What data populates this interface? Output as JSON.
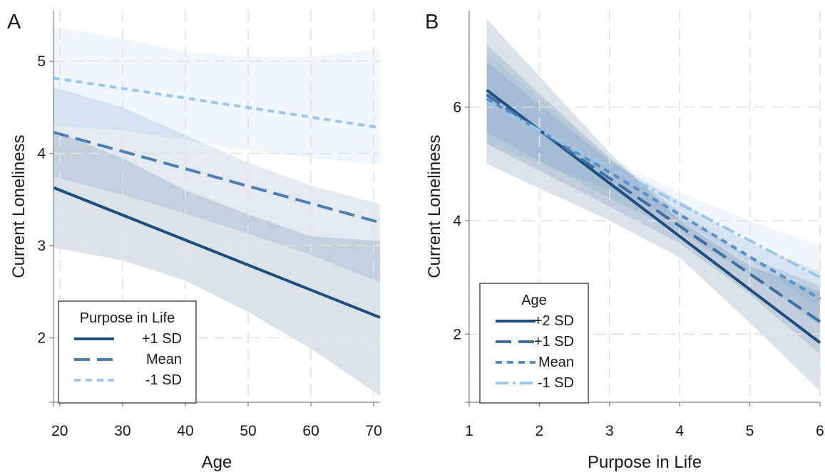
{
  "chart_data": [
    {
      "panel_label": "A",
      "type": "line",
      "xlabel": "Age",
      "ylabel": "Current Loneliness",
      "xlim": [
        19,
        71
      ],
      "ylim": [
        1.3,
        5.55
      ],
      "xticks": [
        20,
        30,
        40,
        50,
        60,
        70
      ],
      "yticks": [
        2,
        3,
        4,
        5
      ],
      "grid": true,
      "legend": {
        "title": "Purpose in Life",
        "placement": "bottom-left",
        "entries": [
          "+1 SD",
          "Mean",
          "-1 SD"
        ]
      },
      "series": [
        {
          "name": "+1 SD",
          "color": "#1f4e7e",
          "dash": "solid",
          "x": [
            19,
            71
          ],
          "y": [
            3.63,
            2.22
          ],
          "ci_lower": [
            [
              19,
              2.98
            ],
            [
              30,
              2.84
            ],
            [
              40,
              2.62
            ],
            [
              50,
              2.28
            ],
            [
              60,
              1.88
            ],
            [
              71,
              1.37
            ]
          ],
          "ci_upper": [
            [
              19,
              4.25
            ],
            [
              30,
              3.95
            ],
            [
              40,
              3.6
            ],
            [
              50,
              3.34
            ],
            [
              60,
              3.1
            ],
            [
              71,
              3.05
            ]
          ]
        },
        {
          "name": "Mean",
          "color": "#4f7fb0",
          "dash": "long",
          "x": [
            19,
            71
          ],
          "y": [
            4.23,
            3.25
          ],
          "ci_lower": [
            [
              19,
              3.75
            ],
            [
              30,
              3.55
            ],
            [
              40,
              3.35
            ],
            [
              50,
              3.13
            ],
            [
              60,
              2.9
            ],
            [
              71,
              2.6
            ]
          ],
          "ci_upper": [
            [
              19,
              4.72
            ],
            [
              30,
              4.5
            ],
            [
              40,
              4.2
            ],
            [
              50,
              3.9
            ],
            [
              60,
              3.65
            ],
            [
              71,
              3.45
            ]
          ]
        },
        {
          "name": "-1 SD",
          "color": "#9cc6ea",
          "dash": "short",
          "x": [
            19,
            71
          ],
          "y": [
            4.82,
            4.28
          ],
          "ci_lower": [
            [
              19,
              4.3
            ],
            [
              30,
              4.25
            ],
            [
              40,
              4.15
            ],
            [
              50,
              4.03
            ],
            [
              60,
              3.95
            ],
            [
              71,
              3.88
            ]
          ],
          "ci_upper": [
            [
              19,
              5.38
            ],
            [
              30,
              5.25
            ],
            [
              40,
              5.1
            ],
            [
              50,
              5.05
            ],
            [
              60,
              5.05
            ],
            [
              71,
              5.13
            ]
          ]
        }
      ]
    },
    {
      "panel_label": "B",
      "type": "line",
      "xlabel": "Purpose in Life",
      "ylabel": "Current Loneliness",
      "xlim": [
        1,
        6
      ],
      "ylim": [
        0.8,
        7.7
      ],
      "xticks": [
        1,
        2,
        3,
        4,
        5,
        6
      ],
      "yticks": [
        2,
        4,
        6
      ],
      "grid": true,
      "legend": {
        "title": "Age",
        "placement": "bottom-left",
        "entries": [
          "+2 SD",
          "+1 SD",
          "Mean",
          "-1 SD"
        ]
      },
      "series": [
        {
          "name": "+2 SD",
          "color": "#1f4e7e",
          "dash": "solid",
          "x": [
            1.25,
            6
          ],
          "y": [
            6.3,
            1.85
          ],
          "ci_lower": [
            [
              1.25,
              5.0
            ],
            [
              3,
              4.0
            ],
            [
              4,
              3.35
            ],
            [
              5,
              2.2
            ],
            [
              6,
              1.0
            ]
          ],
          "ci_upper": [
            [
              1.25,
              7.55
            ],
            [
              3,
              5.2
            ],
            [
              4,
              4.0
            ],
            [
              5,
              3.2
            ],
            [
              6,
              2.75
            ]
          ]
        },
        {
          "name": "+1 SD",
          "color": "#3f6fa3",
          "dash": "long",
          "x": [
            1.25,
            6
          ],
          "y": [
            6.22,
            2.22
          ],
          "ci_lower": [
            [
              1.25,
              5.35
            ],
            [
              3,
              4.25
            ],
            [
              4,
              3.6
            ],
            [
              5,
              2.7
            ],
            [
              6,
              1.65
            ]
          ],
          "ci_upper": [
            [
              1.25,
              7.1
            ],
            [
              3,
              5.1
            ],
            [
              4,
              4.15
            ],
            [
              5,
              3.35
            ],
            [
              6,
              2.85
            ]
          ]
        },
        {
          "name": "Mean",
          "color": "#5b8fc7",
          "dash": "short",
          "x": [
            1.25,
            6
          ],
          "y": [
            6.15,
            2.62
          ],
          "ci_lower": [
            [
              1.25,
              5.55
            ],
            [
              3,
              4.4
            ],
            [
              4,
              3.8
            ],
            [
              5,
              3.05
            ],
            [
              6,
              2.15
            ]
          ],
          "ci_upper": [
            [
              1.25,
              6.8
            ],
            [
              3,
              5.05
            ],
            [
              4,
              4.35
            ],
            [
              5,
              3.6
            ],
            [
              6,
              3.1
            ]
          ]
        },
        {
          "name": "-1 SD",
          "color": "#9cc6ea",
          "dash": "dashdot",
          "x": [
            1.25,
            6
          ],
          "y": [
            6.08,
            3.0
          ],
          "ci_lower": [
            [
              1.25,
              5.35
            ],
            [
              3,
              4.55
            ],
            [
              4,
              4.0
            ],
            [
              5,
              3.3
            ],
            [
              6,
              2.45
            ]
          ],
          "ci_upper": [
            [
              1.25,
              6.95
            ],
            [
              3,
              5.1
            ],
            [
              4,
              4.5
            ],
            [
              5,
              4.0
            ],
            [
              6,
              3.55
            ]
          ]
        }
      ]
    }
  ]
}
